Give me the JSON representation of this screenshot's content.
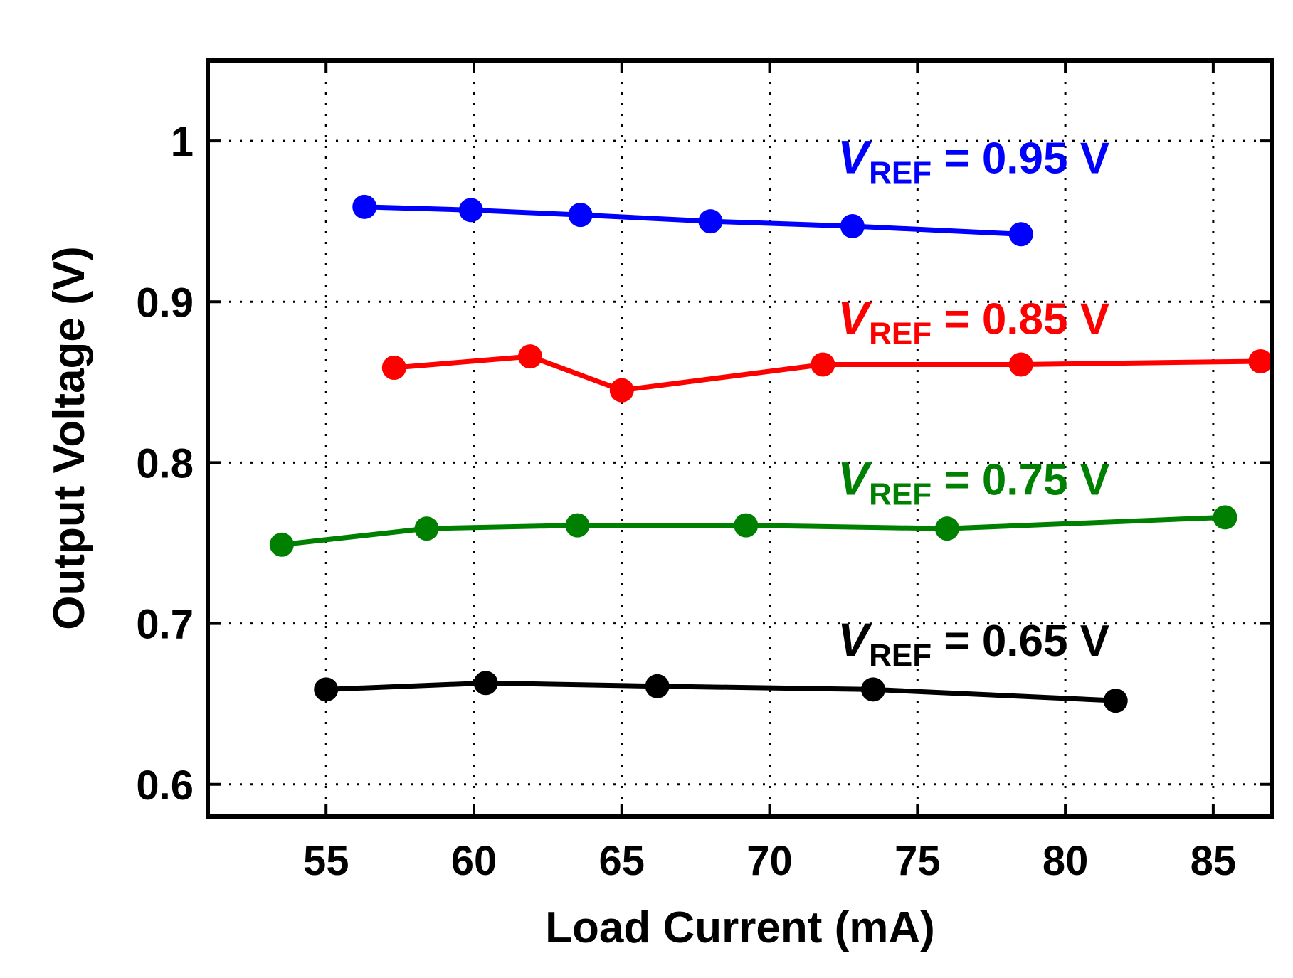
{
  "chart_data": {
    "type": "line",
    "title": "",
    "xlabel": "Load Current (mA)",
    "ylabel": "Output Voltage (V)",
    "xlim": [
      51,
      87
    ],
    "ylim": [
      0.58,
      1.05
    ],
    "xticks": [
      55,
      60,
      65,
      70,
      75,
      80,
      85
    ],
    "xtick_labels": [
      "55",
      "60",
      "65",
      "70",
      "75",
      "80",
      "85"
    ],
    "yticks": [
      0.6,
      0.7,
      0.8,
      0.9,
      1.0
    ],
    "ytick_labels": [
      "0.6",
      "0.7",
      "0.8",
      "0.9",
      "1"
    ],
    "grid": true,
    "series": [
      {
        "name": "VREF = 0.95 V",
        "color": "#0000ff",
        "label": {
          "v": "V",
          "sub": "REF",
          "rest": " = 0.95 V",
          "anchor_x": 72.3,
          "anchor_y": 0.98
        },
        "x": [
          56.3,
          59.9,
          63.6,
          68.0,
          72.8,
          78.5
        ],
        "y": [
          0.959,
          0.957,
          0.954,
          0.95,
          0.947,
          0.942
        ]
      },
      {
        "name": "VREF = 0.85 V",
        "color": "#ff0000",
        "label": {
          "v": "V",
          "sub": "REF",
          "rest": " = 0.85 V",
          "anchor_x": 72.3,
          "anchor_y": 0.88
        },
        "x": [
          57.3,
          61.9,
          65.0,
          71.8,
          78.5,
          86.6
        ],
        "y": [
          0.859,
          0.866,
          0.845,
          0.861,
          0.861,
          0.863
        ]
      },
      {
        "name": "VREF = 0.75 V",
        "color": "#008000",
        "label": {
          "v": "V",
          "sub": "REF",
          "rest": " = 0.75 V",
          "anchor_x": 72.3,
          "anchor_y": 0.78
        },
        "x": [
          53.5,
          58.4,
          63.5,
          69.2,
          76.0,
          85.4
        ],
        "y": [
          0.749,
          0.759,
          0.761,
          0.761,
          0.759,
          0.766
        ]
      },
      {
        "name": "VREF = 0.65 V",
        "color": "#000000",
        "label": {
          "v": "V",
          "sub": "REF",
          "rest": " = 0.65 V",
          "anchor_x": 72.3,
          "anchor_y": 0.68
        },
        "x": [
          55.0,
          60.4,
          66.2,
          73.5,
          81.7
        ],
        "y": [
          0.659,
          0.663,
          0.661,
          0.659,
          0.652
        ]
      }
    ]
  }
}
